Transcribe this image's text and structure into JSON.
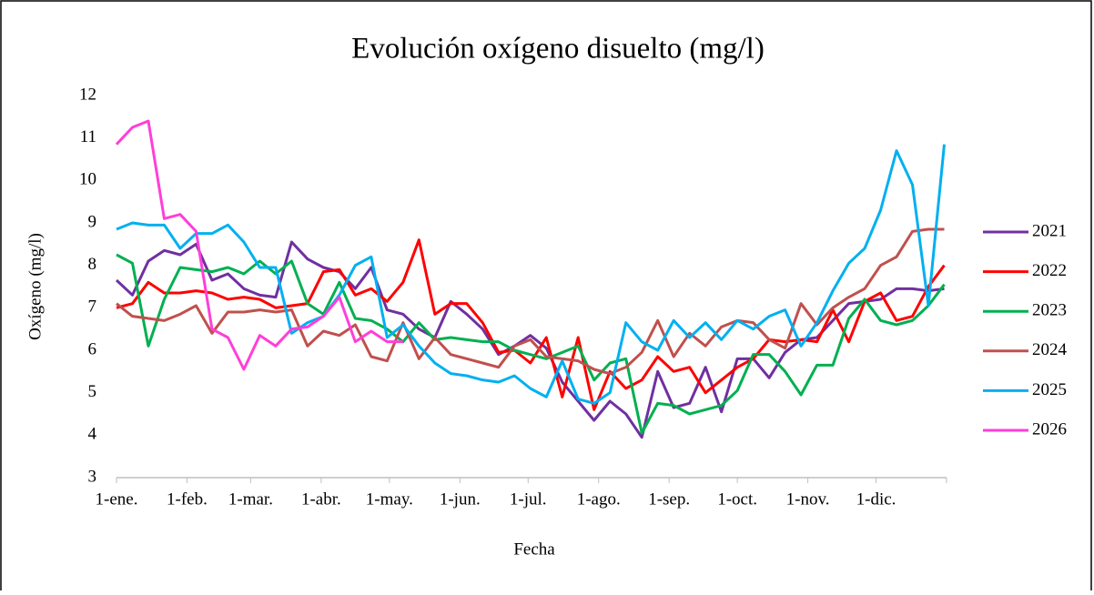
{
  "chart_data": {
    "type": "line",
    "title": "Evolución oxígeno disuelto (mg/l)",
    "x_label": "Fecha",
    "y_label": "Oxígeno (mg/l)",
    "x": [
      0,
      7,
      14,
      21,
      28,
      35,
      42,
      49,
      56,
      63,
      70,
      77,
      84,
      91,
      98,
      105,
      112,
      119,
      126,
      133,
      140,
      147,
      154,
      161,
      168,
      175,
      182,
      189,
      196,
      203,
      210,
      217,
      224,
      231,
      238,
      245,
      252,
      259,
      266,
      273,
      280,
      287,
      294,
      301,
      308,
      315,
      322,
      329,
      336,
      343,
      350,
      357,
      364
    ],
    "xlim": [
      0,
      365
    ],
    "xticks": [
      {
        "value": 0,
        "label": "1-ene."
      },
      {
        "value": 31,
        "label": "1-feb."
      },
      {
        "value": 59,
        "label": "1-mar."
      },
      {
        "value": 90,
        "label": "1-abr."
      },
      {
        "value": 120,
        "label": "1-may."
      },
      {
        "value": 151,
        "label": "1-jun."
      },
      {
        "value": 181,
        "label": "1-jul."
      },
      {
        "value": 212,
        "label": "1-ago."
      },
      {
        "value": 243,
        "label": "1-sep."
      },
      {
        "value": 273,
        "label": "1-oct."
      },
      {
        "value": 304,
        "label": "1-nov."
      },
      {
        "value": 334,
        "label": "1-dic."
      }
    ],
    "ylim": [
      3,
      12
    ],
    "yticks": [
      3,
      4,
      5,
      6,
      7,
      8,
      9,
      10,
      11,
      12
    ],
    "grid": false,
    "legend": "right",
    "series": [
      {
        "name": "2021",
        "color": "#7030a0",
        "values": [
          7.65,
          7.3,
          8.1,
          8.35,
          8.25,
          8.5,
          7.65,
          7.8,
          7.45,
          7.3,
          7.25,
          8.55,
          8.15,
          7.95,
          7.85,
          7.45,
          7.95,
          6.95,
          6.85,
          6.5,
          6.3,
          7.15,
          6.85,
          6.5,
          5.9,
          6.1,
          6.35,
          6.05,
          5.25,
          4.8,
          4.35,
          4.8,
          4.5,
          3.95,
          5.5,
          4.65,
          4.75,
          5.6,
          4.55,
          5.8,
          5.8,
          5.35,
          5.95,
          6.25,
          6.3,
          6.7,
          7.1,
          7.15,
          7.2,
          7.45,
          7.45,
          7.4,
          7.45
        ]
      },
      {
        "name": "2022",
        "color": "#ff0000",
        "values": [
          7.0,
          7.1,
          7.6,
          7.35,
          7.35,
          7.4,
          7.35,
          7.2,
          7.25,
          7.2,
          7.0,
          7.05,
          7.1,
          7.85,
          7.9,
          7.3,
          7.45,
          7.15,
          7.6,
          8.6,
          6.85,
          7.1,
          7.1,
          6.65,
          5.95,
          6.0,
          5.7,
          6.3,
          4.9,
          6.3,
          4.6,
          5.5,
          5.1,
          5.3,
          5.85,
          5.5,
          5.6,
          5.0,
          5.3,
          5.6,
          5.8,
          6.25,
          6.2,
          6.25,
          6.2,
          6.95,
          6.2,
          7.15,
          7.35,
          6.7,
          6.8,
          7.5,
          8.0
        ]
      },
      {
        "name": "2023",
        "color": "#00b050",
        "values": [
          8.25,
          8.05,
          6.1,
          7.2,
          7.95,
          7.9,
          7.85,
          7.95,
          7.8,
          8.1,
          7.8,
          8.1,
          7.1,
          6.85,
          7.6,
          6.75,
          6.7,
          6.5,
          6.2,
          6.65,
          6.25,
          6.3,
          6.25,
          6.2,
          6.2,
          6.0,
          5.9,
          5.8,
          5.95,
          6.1,
          5.3,
          5.7,
          5.8,
          4.05,
          4.75,
          4.7,
          4.5,
          4.6,
          4.7,
          5.05,
          5.9,
          5.9,
          5.5,
          4.95,
          5.65,
          5.65,
          6.75,
          7.2,
          6.7,
          6.6,
          6.7,
          7.05,
          7.55
        ]
      },
      {
        "name": "2024",
        "color": "#c0504d",
        "values": [
          7.1,
          6.8,
          6.75,
          6.7,
          6.85,
          7.05,
          6.4,
          6.9,
          6.9,
          6.95,
          6.9,
          6.95,
          6.1,
          6.45,
          6.35,
          6.6,
          5.85,
          5.75,
          6.65,
          5.8,
          6.3,
          5.9,
          5.8,
          5.7,
          5.6,
          6.1,
          6.25,
          5.85,
          5.8,
          5.75,
          5.55,
          5.45,
          5.6,
          5.95,
          6.7,
          5.85,
          6.4,
          6.1,
          6.55,
          6.7,
          6.65,
          6.25,
          6.05,
          7.1,
          6.6,
          7.0,
          7.25,
          7.45,
          8.0,
          8.2,
          8.8,
          8.85,
          8.85
        ]
      },
      {
        "name": "2025",
        "color": "#00b0f0",
        "values": [
          8.85,
          9.0,
          8.95,
          8.95,
          8.4,
          8.75,
          8.75,
          8.95,
          8.55,
          7.95,
          7.95,
          6.4,
          6.65,
          6.8,
          7.3,
          8.0,
          8.2,
          6.3,
          6.6,
          6.1,
          5.7,
          5.45,
          5.4,
          5.3,
          5.25,
          5.4,
          5.1,
          4.9,
          5.75,
          4.85,
          4.75,
          5.0,
          6.65,
          6.2,
          6.0,
          6.7,
          6.3,
          6.65,
          6.25,
          6.7,
          6.5,
          6.8,
          6.95,
          6.1,
          6.65,
          7.4,
          8.05,
          8.4,
          9.3,
          10.7,
          9.9,
          7.05,
          10.85
        ]
      },
      {
        "name": "2026",
        "color": "#ff3fd8",
        "values": [
          10.85,
          11.25,
          11.4,
          9.1,
          9.2,
          8.8,
          6.5,
          6.3,
          5.55,
          6.35,
          6.1,
          6.5,
          6.55,
          6.8,
          7.25,
          6.2,
          6.45,
          6.2,
          6.2,
          null,
          null,
          null,
          null,
          null,
          null,
          null,
          null,
          null,
          null,
          null,
          null,
          null,
          null,
          null,
          null,
          null,
          null,
          null,
          null,
          null,
          null,
          null,
          null,
          null,
          null,
          null,
          null,
          null,
          null,
          null,
          null,
          null,
          null
        ]
      }
    ]
  }
}
